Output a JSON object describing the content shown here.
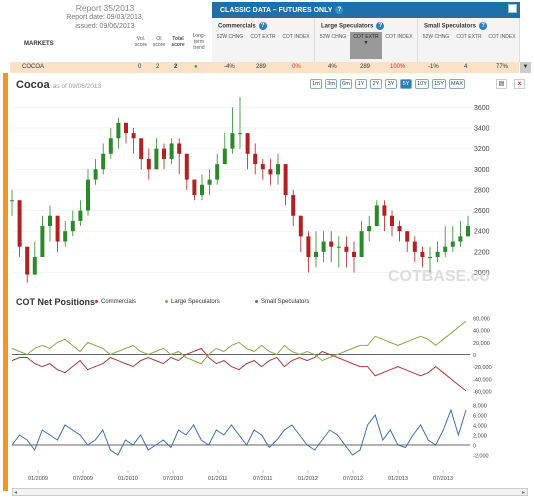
{
  "report": {
    "line1": "Report 35/2013",
    "line2": "Report date: 09/03/2013,",
    "line3": "issued: 09/06/2013"
  },
  "columns": {
    "markets": "MARKETS",
    "vol": "Vol. score",
    "oi": "OI score",
    "total": "Total score",
    "trend": "Long-term trend"
  },
  "classic": {
    "title": "CLASSIC DATA – FUTURES ONLY",
    "groups": [
      {
        "name": "Commercials",
        "cols": [
          "52W CHNG",
          "COT EXTR",
          "COT INDEX"
        ]
      },
      {
        "name": "Large Speculators",
        "cols": [
          "52W CHNG",
          "COT EXTR",
          "COT INDEX"
        ]
      },
      {
        "name": "Small Speculators",
        "cols": [
          "52W CHNG",
          "COT EXTR",
          "COT INDEX"
        ]
      }
    ]
  },
  "row": {
    "market": "COCOA",
    "vol": "0",
    "oi": "2",
    "total": "2",
    "trend_icon": "up-arrow-icon",
    "com_52w": "-4%",
    "com_extr": "289",
    "com_index": "0%",
    "ls_52w": "4%",
    "ls_extr": "289",
    "ls_index": "100%",
    "ss_52w": "-1%",
    "ss_extr": "4",
    "ss_index": "77%"
  },
  "chart_title": "Cocoa",
  "as_of": "as of 09/06/2013",
  "timeframes": [
    "1m",
    "3m",
    "6m",
    "1Y",
    "2Y",
    "3Y",
    "5Y",
    "10Y",
    "15Y",
    "MAX"
  ],
  "selected_timeframe": "5Y",
  "watermark": "COTBASE.com",
  "net_title": "COT Net Positions",
  "legend": [
    {
      "name": "Commercials",
      "color": "#b03a3a"
    },
    {
      "name": "Large Speculators",
      "color": "#8aaa4a"
    },
    {
      "name": "Small Speculators",
      "color": "#3d6fb0"
    }
  ],
  "chart_data": [
    {
      "type": "candlestick",
      "title": "Cocoa",
      "ylim": [
        1850,
        3700
      ],
      "yticks": [
        2000,
        2200,
        2400,
        2600,
        2800,
        3000,
        3200,
        3400,
        3600
      ],
      "x": [
        "2008-09",
        "2008-10",
        "2008-11",
        "2008-12",
        "2009-01",
        "2009-02",
        "2009-03",
        "2009-04",
        "2009-05",
        "2009-06",
        "2009-07",
        "2009-08",
        "2009-09",
        "2009-10",
        "2009-11",
        "2009-12",
        "2010-01",
        "2010-02",
        "2010-03",
        "2010-04",
        "2010-05",
        "2010-06",
        "2010-07",
        "2010-08",
        "2010-09",
        "2010-10",
        "2010-11",
        "2010-12",
        "2011-01",
        "2011-02",
        "2011-03",
        "2011-04",
        "2011-05",
        "2011-06",
        "2011-07",
        "2011-08",
        "2011-09",
        "2011-10",
        "2011-11",
        "2011-12",
        "2012-01",
        "2012-02",
        "2012-03",
        "2012-04",
        "2012-05",
        "2012-06",
        "2012-07",
        "2012-08",
        "2012-09",
        "2012-10",
        "2012-11",
        "2012-12",
        "2013-01",
        "2013-02",
        "2013-03",
        "2013-04",
        "2013-05",
        "2013-06",
        "2013-07",
        "2013-08",
        "2013-09"
      ],
      "close": [
        2700,
        2250,
        1980,
        2150,
        2450,
        2550,
        2300,
        2400,
        2500,
        2600,
        2900,
        3000,
        3150,
        3300,
        3450,
        3350,
        3300,
        3100,
        3000,
        3200,
        3100,
        3250,
        3150,
        2900,
        2750,
        2850,
        2900,
        3050,
        3200,
        3350,
        3350,
        3150,
        3050,
        3000,
        2950,
        3050,
        2750,
        2550,
        2350,
        2150,
        2200,
        2300,
        2250,
        2250,
        2200,
        2150,
        2400,
        2450,
        2650,
        2550,
        2450,
        2400,
        2300,
        2200,
        2150,
        2150,
        2200,
        2250,
        2300,
        2350,
        2450
      ],
      "high": [
        2800,
        2700,
        2250,
        2300,
        2550,
        2650,
        2550,
        2500,
        2600,
        2700,
        3000,
        3100,
        3250,
        3400,
        3500,
        3450,
        3400,
        3300,
        3200,
        3300,
        3250,
        3300,
        3300,
        3150,
        2900,
        2950,
        3000,
        3150,
        3350,
        3600,
        3700,
        3350,
        3250,
        3100,
        3100,
        3150,
        3050,
        2800,
        2550,
        2400,
        2400,
        2400,
        2400,
        2350,
        2350,
        2300,
        2500,
        2550,
        2700,
        2700,
        2600,
        2500,
        2400,
        2350,
        2250,
        2250,
        2300,
        2450,
        2450,
        2500,
        2550
      ],
      "low": [
        2550,
        2150,
        1900,
        1980,
        2150,
        2300,
        2200,
        2250,
        2350,
        2450,
        2550,
        2850,
        2950,
        3100,
        3200,
        3250,
        3150,
        3000,
        2900,
        3000,
        3000,
        3050,
        2950,
        2800,
        2700,
        2700,
        2750,
        2850,
        3050,
        3150,
        3200,
        3000,
        2950,
        2900,
        2850,
        2850,
        2650,
        2450,
        2200,
        2000,
        2050,
        2100,
        2100,
        2050,
        2050,
        2000,
        2150,
        2300,
        2450,
        2400,
        2350,
        2300,
        2200,
        2100,
        2050,
        2000,
        2100,
        2150,
        2200,
        2250,
        2350
      ],
      "xlabel": "",
      "ylabel": ""
    },
    {
      "type": "line",
      "title": "COT Net Positions",
      "ylim": [
        -70000,
        70000
      ],
      "yticks": [
        -60000,
        -40000,
        -20000,
        0,
        20000,
        40000,
        60000
      ],
      "series": [
        {
          "name": "Commercials",
          "values": [
            -10000,
            -5000,
            -5000,
            -15000,
            -20000,
            -15000,
            -25000,
            -30000,
            -20000,
            -10000,
            -25000,
            -20000,
            -15000,
            -5000,
            -10000,
            -15000,
            -20000,
            -10000,
            -5000,
            -10000,
            -15000,
            -5000,
            -10000,
            0,
            5000,
            10000,
            -5000,
            -15000,
            -10000,
            -20000,
            -25000,
            -15000,
            -10000,
            -20000,
            -10000,
            -5000,
            -20000,
            -10000,
            -5000,
            -10000,
            -5000,
            5000,
            0,
            -5000,
            -10000,
            -15000,
            -20000,
            -20000,
            -35000,
            -30000,
            -25000,
            -20000,
            -25000,
            -30000,
            -35000,
            -30000,
            -20000,
            -30000,
            -40000,
            -50000,
            -60000
          ]
        },
        {
          "name": "Large Speculators",
          "values": [
            10000,
            5000,
            0,
            10000,
            15000,
            10000,
            20000,
            25000,
            15000,
            5000,
            20000,
            15000,
            10000,
            0,
            5000,
            10000,
            15000,
            5000,
            0,
            5000,
            10000,
            0,
            5000,
            -5000,
            -10000,
            -15000,
            0,
            10000,
            5000,
            15000,
            20000,
            10000,
            5000,
            15000,
            5000,
            0,
            15000,
            5000,
            0,
            5000,
            0,
            -10000,
            -5000,
            0,
            5000,
            10000,
            15000,
            15000,
            30000,
            25000,
            20000,
            15000,
            20000,
            25000,
            30000,
            25000,
            15000,
            25000,
            35000,
            45000,
            55000
          ]
        },
        {
          "name": "Small Speculators",
          "values": [
            0,
            2000,
            1000,
            -1000,
            3000,
            2000,
            1000,
            4000,
            3000,
            2000,
            0,
            1000,
            3000,
            -1000,
            -2000,
            1000,
            0,
            2000,
            -1000,
            0,
            1000,
            -500,
            3000,
            2000,
            4000,
            1000,
            0,
            3000,
            2000,
            4000,
            2000,
            0,
            3000,
            2000,
            -500,
            1000,
            3000,
            4000,
            2000,
            0,
            -1000,
            1000,
            3000,
            2000,
            0,
            -2000,
            -1000,
            4000,
            6000,
            1000,
            3000,
            0,
            -500,
            2000,
            4000,
            1000,
            0,
            3000,
            7000,
            2000,
            7000
          ]
        }
      ],
      "yticks_small": [
        -2000,
        0,
        2000,
        4000,
        6000,
        8000
      ]
    }
  ],
  "x_labels": [
    "01/2009",
    "07/2009",
    "01/2010",
    "07/2010",
    "01/2011",
    "07/2011",
    "01/2012",
    "07/2012",
    "01/2013",
    "07/2013"
  ]
}
